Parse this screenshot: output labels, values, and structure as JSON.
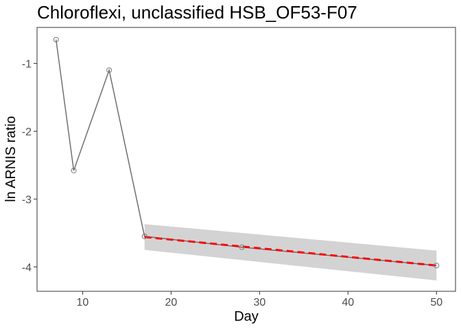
{
  "chart_data": {
    "type": "line",
    "title": "Chloroflexi, unclassified HSB_OF53-F07",
    "xlabel": "Day",
    "ylabel": "ln ARNIS ratio",
    "xlim": [
      4.85,
      52.15
    ],
    "ylim": [
      -4.36,
      -0.47
    ],
    "xticks": [
      10,
      20,
      30,
      40,
      50
    ],
    "yticks": [
      -4,
      -3,
      -2,
      -1
    ],
    "grid": false,
    "series": [
      {
        "x": [
          7,
          9,
          13,
          17,
          28,
          50
        ],
        "y": [
          -0.65,
          -2.58,
          -1.1,
          -3.55,
          -3.71,
          -3.98
        ],
        "color": "#666666",
        "marker": "open-circle"
      }
    ],
    "fit": {
      "x": [
        17,
        50
      ],
      "y": [
        -3.56,
        -3.98
      ],
      "color": "#ff0000",
      "style": "dashed",
      "ci_color": "#d3d3d3",
      "ci": {
        "x": [
          17,
          50
        ],
        "lower": [
          -3.75,
          -4.2
        ],
        "upper": [
          -3.37,
          -3.76
        ]
      }
    }
  }
}
